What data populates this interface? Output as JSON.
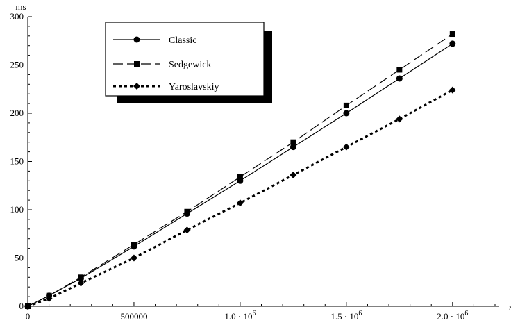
{
  "chart_data": {
    "type": "line",
    "title": "",
    "xlabel": "n",
    "ylabel": "ms",
    "xlim": [
      0,
      2200000
    ],
    "ylim": [
      0,
      300
    ],
    "grid": false,
    "legend_placement": "top-left",
    "x_ticks": [
      {
        "value": 0,
        "label": "0"
      },
      {
        "value": 500000,
        "label": "500000"
      },
      {
        "value": 1000000,
        "label": "1.0 · 10",
        "exp": "6"
      },
      {
        "value": 1500000,
        "label": "1.5 · 10",
        "exp": "6"
      },
      {
        "value": 2000000,
        "label": "2.0 · 10",
        "exp": "6"
      }
    ],
    "y_ticks": [
      {
        "value": 0,
        "label": "0"
      },
      {
        "value": 50,
        "label": "50"
      },
      {
        "value": 100,
        "label": "100"
      },
      {
        "value": 150,
        "label": "150"
      },
      {
        "value": 200,
        "label": "200"
      },
      {
        "value": 250,
        "label": "250"
      },
      {
        "value": 300,
        "label": "300"
      }
    ],
    "series": [
      {
        "name": "Classic",
        "marker": "circle",
        "line_style": "solid",
        "color": "#000000",
        "points": [
          [
            0,
            0
          ],
          [
            100000,
            11
          ],
          [
            250000,
            29
          ],
          [
            500000,
            62
          ],
          [
            750000,
            96
          ],
          [
            1000000,
            130
          ],
          [
            1250000,
            165
          ],
          [
            1500000,
            200
          ],
          [
            1750000,
            236
          ],
          [
            2000000,
            272
          ]
        ]
      },
      {
        "name": "Sedgewick",
        "marker": "square",
        "line_style": "dashed",
        "color": "#000000",
        "points": [
          [
            0,
            0
          ],
          [
            100000,
            11
          ],
          [
            250000,
            30
          ],
          [
            500000,
            64
          ],
          [
            750000,
            98
          ],
          [
            1000000,
            134
          ],
          [
            1250000,
            170
          ],
          [
            1500000,
            208
          ],
          [
            1750000,
            245
          ],
          [
            2000000,
            282
          ]
        ]
      },
      {
        "name": "Yaroslavskiy",
        "marker": "diamond",
        "line_style": "dotted",
        "color": "#000000",
        "points": [
          [
            0,
            0
          ],
          [
            100000,
            8
          ],
          [
            250000,
            24
          ],
          [
            500000,
            50
          ],
          [
            750000,
            79
          ],
          [
            1000000,
            107
          ],
          [
            1250000,
            136
          ],
          [
            1500000,
            165
          ],
          [
            1750000,
            194
          ],
          [
            2000000,
            224
          ]
        ]
      }
    ]
  }
}
